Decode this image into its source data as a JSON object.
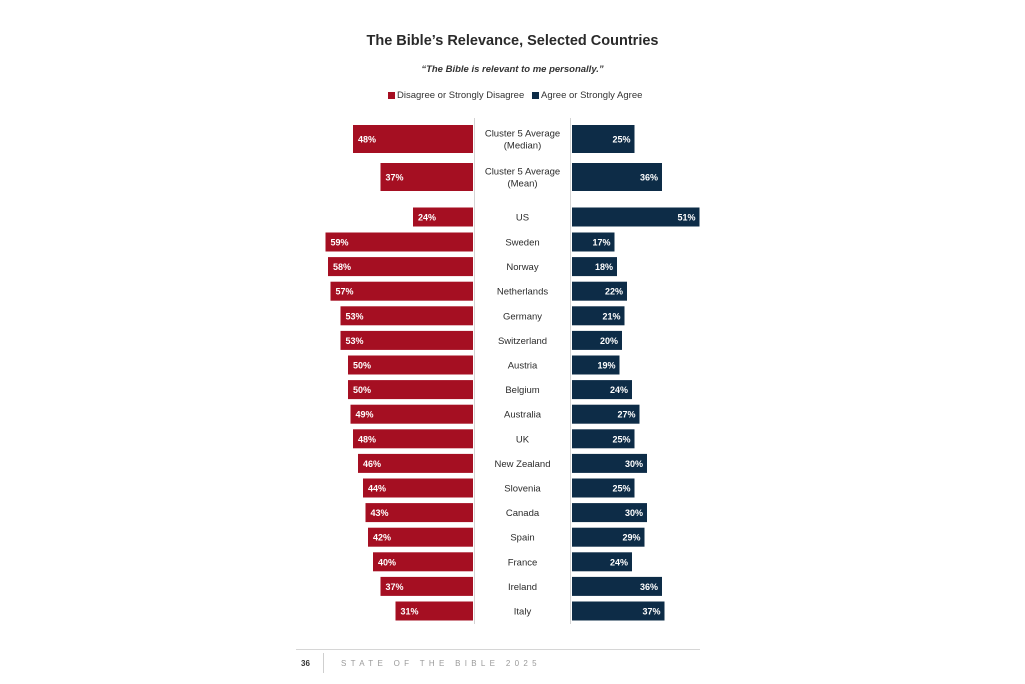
{
  "chart_data": {
    "type": "bar",
    "title": "The Bible’s Relevance, Selected Countries",
    "subtitle": "“The Bible is relevant to me personally.”",
    "legend": [
      "Disagree or Strongly Disagree",
      "Agree or Strongly Agree"
    ],
    "legend_placement": "top",
    "categories": [
      "Cluster 5 Average (Median)",
      "Cluster 5 Average (Mean)",
      "US",
      "Sweden",
      "Norway",
      "Netherlands",
      "Germany",
      "Switzerland",
      "Austria",
      "Belgium",
      "Australia",
      "UK",
      "New Zealand",
      "Slovenia",
      "Canada",
      "Spain",
      "France",
      "Ireland",
      "Italy"
    ],
    "category_lines": [
      [
        "Cluster 5 Average",
        "(Median)"
      ],
      [
        "Cluster 5 Average",
        "(Mean)"
      ],
      [
        "US"
      ],
      [
        "Sweden"
      ],
      [
        "Norway"
      ],
      [
        "Netherlands"
      ],
      [
        "Germany"
      ],
      [
        "Switzerland"
      ],
      [
        "Austria"
      ],
      [
        "Belgium"
      ],
      [
        "Australia"
      ],
      [
        "UK"
      ],
      [
        "New Zealand"
      ],
      [
        "Slovenia"
      ],
      [
        "Canada"
      ],
      [
        "Spain"
      ],
      [
        "France"
      ],
      [
        "Ireland"
      ],
      [
        "Italy"
      ]
    ],
    "series": [
      {
        "name": "Disagree or Strongly Disagree",
        "color": "#a50f22",
        "values": [
          48,
          37,
          24,
          59,
          58,
          57,
          53,
          53,
          50,
          50,
          49,
          48,
          46,
          44,
          43,
          42,
          40,
          37,
          31
        ]
      },
      {
        "name": "Agree or Strongly Agree",
        "color": "#0d2c47",
        "values": [
          25,
          36,
          51,
          17,
          18,
          22,
          21,
          20,
          19,
          24,
          27,
          25,
          30,
          25,
          30,
          29,
          24,
          36,
          37
        ]
      }
    ],
    "value_suffix": "%",
    "xlim": [
      0,
      60
    ],
    "grid": false
  },
  "footer": {
    "page_number": "36",
    "publication": "STATE OF THE BIBLE 2025"
  }
}
